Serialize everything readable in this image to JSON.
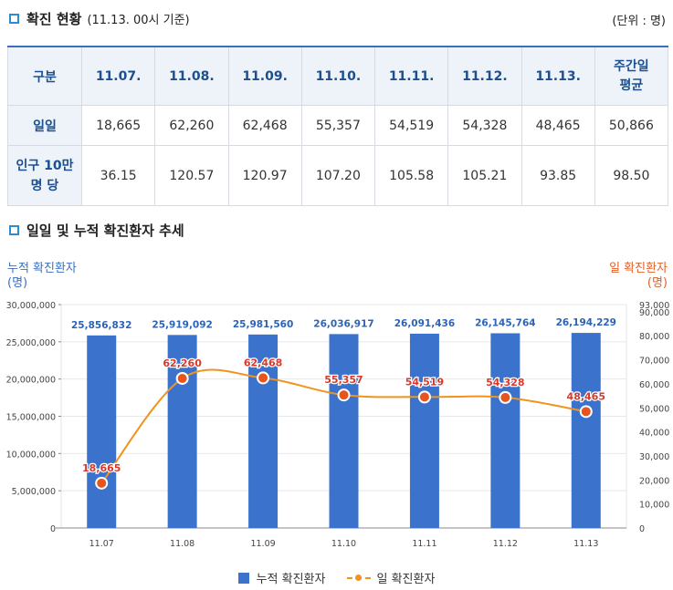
{
  "section1": {
    "title": "확진 현황",
    "subtitle": "(11.13. 00시 기준)",
    "unit": "(단위 : 명)"
  },
  "table": {
    "headers": [
      "구분",
      "11.07.",
      "11.08.",
      "11.09.",
      "11.10.",
      "11.11.",
      "11.12.",
      "11.13.",
      "주간일\n평균"
    ],
    "rows": [
      {
        "label": "일일",
        "values": [
          "18,665",
          "62,260",
          "62,468",
          "55,357",
          "54,519",
          "54,328",
          "48,465",
          "50,866"
        ]
      },
      {
        "label": "인구 10만\n명 당",
        "values": [
          "36.15",
          "120.57",
          "120.97",
          "107.20",
          "105.58",
          "105.21",
          "93.85",
          "98.50"
        ]
      }
    ]
  },
  "section2": {
    "title": "일일 및 누적 확진환자 추세"
  },
  "chart_data": {
    "type": "bar",
    "categories": [
      "11.07",
      "11.08",
      "11.09",
      "11.10",
      "11.11",
      "11.12",
      "11.13"
    ],
    "left_axis": {
      "title": "누적 확진환자\n(명)",
      "min": 0,
      "max": 30000000,
      "ticks": [
        "0",
        "5,000,000",
        "10,000,000",
        "15,000,000",
        "20,000,000",
        "25,000,000",
        "30,000,000"
      ]
    },
    "right_axis": {
      "title": "일 확진환자\n(명)",
      "min": 0,
      "max": 93000,
      "ticks": [
        "0",
        "10,000",
        "20,000",
        "30,000",
        "40,000",
        "50,000",
        "60,000",
        "70,000",
        "80,000",
        "90,000",
        "93,000"
      ]
    },
    "series": [
      {
        "name": "누적 확진환자",
        "kind": "bar",
        "axis": "left",
        "color": "#3b73cc",
        "values": [
          25856832,
          25919092,
          25981560,
          26036917,
          26091436,
          26145764,
          26194229
        ],
        "labels": [
          "25,856,832",
          "25,919,092",
          "25,981,560",
          "26,036,917",
          "26,091,436",
          "26,145,764",
          "26,194,229"
        ]
      },
      {
        "name": "일 확진환자",
        "kind": "line",
        "axis": "right",
        "color": "#f0941d",
        "values": [
          18665,
          62260,
          62468,
          55357,
          54519,
          54328,
          48465
        ],
        "labels": [
          "18,665",
          "62,260",
          "62,468",
          "55,357",
          "54,519",
          "54,328",
          "48,465"
        ]
      }
    ]
  }
}
